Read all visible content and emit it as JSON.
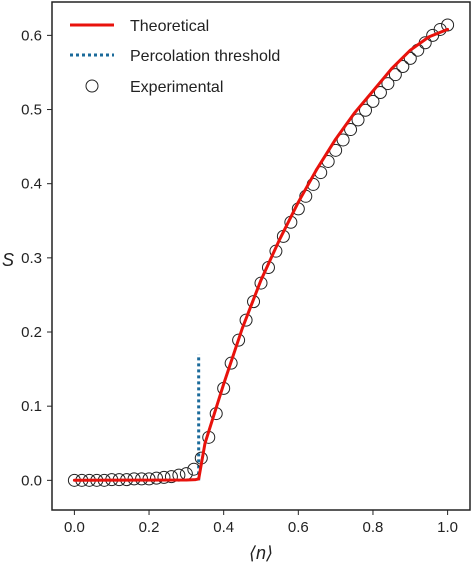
{
  "chart_data": {
    "type": "line",
    "xlabel": "⟨n⟩",
    "ylabel": "S",
    "xlim": [
      -0.06,
      1.06
    ],
    "ylim": [
      -0.04,
      0.645
    ],
    "xticks": [
      "0.0",
      "0.2",
      "0.4",
      "0.6",
      "0.8",
      "1.0"
    ],
    "yticks": [
      "0.0",
      "0.1",
      "0.2",
      "0.3",
      "0.4",
      "0.5",
      "0.6"
    ],
    "grid": false,
    "legend_position": "top-left",
    "colors": {
      "theoretical": "#e8120c",
      "threshold": "#1a6a9a",
      "experimental": "#222222",
      "frame": "#222222"
    },
    "series": [
      {
        "name": "Theoretical",
        "kind": "line",
        "x": [
          0.0,
          0.3,
          0.325,
          0.333,
          0.35,
          0.4,
          0.45,
          0.5,
          0.55,
          0.6,
          0.65,
          0.7,
          0.75,
          0.8,
          0.85,
          0.9,
          0.95,
          1.0
        ],
        "y": [
          0.0,
          0.0005,
          0.001,
          0.002,
          0.05,
          0.13,
          0.205,
          0.27,
          0.325,
          0.375,
          0.42,
          0.46,
          0.495,
          0.525,
          0.555,
          0.58,
          0.598,
          0.608
        ]
      },
      {
        "name": "Percolation threshold",
        "kind": "vline",
        "x": 0.333,
        "y": [
          0.0,
          0.17
        ]
      },
      {
        "name": "Experimental",
        "kind": "scatter",
        "x": [
          0.0,
          0.02,
          0.04,
          0.06,
          0.08,
          0.1,
          0.12,
          0.14,
          0.16,
          0.18,
          0.2,
          0.22,
          0.24,
          0.26,
          0.28,
          0.3,
          0.32,
          0.34,
          0.36,
          0.38,
          0.4,
          0.42,
          0.44,
          0.46,
          0.48,
          0.5,
          0.52,
          0.54,
          0.56,
          0.58,
          0.6,
          0.62,
          0.64,
          0.66,
          0.68,
          0.7,
          0.72,
          0.74,
          0.76,
          0.78,
          0.8,
          0.82,
          0.84,
          0.86,
          0.88,
          0.9,
          0.92,
          0.94,
          0.96,
          0.98,
          1.0
        ],
        "y": [
          0.0,
          0.0,
          0.0,
          0.0,
          0.0,
          0.001,
          0.001,
          0.001,
          0.002,
          0.002,
          0.002,
          0.003,
          0.004,
          0.005,
          0.007,
          0.009,
          0.015,
          0.03,
          0.058,
          0.09,
          0.124,
          0.158,
          0.189,
          0.216,
          0.241,
          0.266,
          0.287,
          0.309,
          0.329,
          0.348,
          0.366,
          0.383,
          0.399,
          0.415,
          0.43,
          0.445,
          0.459,
          0.473,
          0.486,
          0.499,
          0.511,
          0.523,
          0.535,
          0.547,
          0.558,
          0.569,
          0.58,
          0.59,
          0.6,
          0.608,
          0.614
        ]
      }
    ]
  }
}
